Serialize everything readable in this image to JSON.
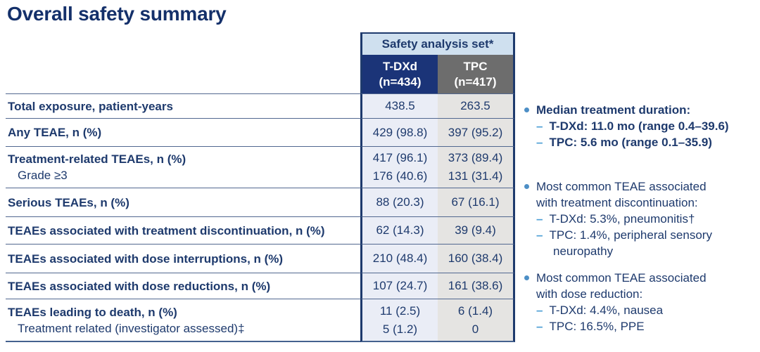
{
  "title": "Overall safety summary",
  "colors": {
    "navy_text": "#1e3a6d",
    "header_navy_bg": "#1b3478",
    "header_gray_bg": "#6d6d6d",
    "group_header_bg": "#cfe0ef",
    "tdxd_column_bg": "#eaedf6",
    "tpc_column_bg": "#e5e4e2",
    "accent_light_blue": "#4d9fd6"
  },
  "table": {
    "group_header": "Safety analysis set*",
    "columns": [
      {
        "label": "T-DXd",
        "n": "(n=434)"
      },
      {
        "label": "TPC",
        "n": "(n=417)"
      }
    ],
    "rows": [
      {
        "label": "Total exposure, patient-years",
        "tdxd": [
          "438.5"
        ],
        "tpc": [
          "263.5"
        ]
      },
      {
        "label": "Any TEAE, n (%)",
        "tdxd": [
          "429 (98.8)"
        ],
        "tpc": [
          "397 (95.2)"
        ]
      },
      {
        "label": "Treatment-related TEAEs, n (%)",
        "sublabel": "Grade ≥3",
        "tdxd": [
          "417 (96.1)",
          "176 (40.6)"
        ],
        "tpc": [
          "373 (89.4)",
          "131 (31.4)"
        ]
      },
      {
        "label": "Serious TEAEs, n (%)",
        "tdxd": [
          "88 (20.3)"
        ],
        "tpc": [
          "67 (16.1)"
        ]
      },
      {
        "label": "TEAEs associated with treatment discontinuation, n (%)",
        "tdxd": [
          "62 (14.3)"
        ],
        "tpc": [
          "39 (9.4)"
        ]
      },
      {
        "label": "TEAEs associated with dose interruptions, n (%)",
        "tdxd": [
          "210 (48.4)"
        ],
        "tpc": [
          "160 (38.4)"
        ]
      },
      {
        "label": "TEAEs associated with dose reductions, n (%)",
        "tdxd": [
          "107 (24.7)"
        ],
        "tpc": [
          "161 (38.6)"
        ]
      },
      {
        "label": "TEAEs leading to death, n (%)",
        "sublabel": "Treatment related (investigator assessed)‡",
        "tdxd": [
          "11 (2.5)",
          "5 (1.2)"
        ],
        "tpc": [
          "6 (1.4)",
          "0"
        ]
      }
    ]
  },
  "notes": [
    {
      "bold": true,
      "heading_lines": [
        "Median treatment duration:"
      ],
      "items": [
        [
          "T-DXd: 11.0 mo (range 0.4–39.6)"
        ],
        [
          "TPC: 5.6 mo (range 0.1–35.9)"
        ]
      ]
    },
    {
      "bold": false,
      "heading_lines": [
        "Most common TEAE associated",
        "with treatment discontinuation:"
      ],
      "items": [
        [
          "T-DXd: 5.3%, pneumonitis†"
        ],
        [
          "TPC: 1.4%, peripheral sensory",
          "neuropathy"
        ]
      ]
    },
    {
      "bold": false,
      "heading_lines": [
        "Most common TEAE associated",
        "with dose reduction:"
      ],
      "items": [
        [
          "T-DXd: 4.4%, nausea"
        ],
        [
          "TPC: 16.5%, PPE"
        ]
      ]
    }
  ]
}
